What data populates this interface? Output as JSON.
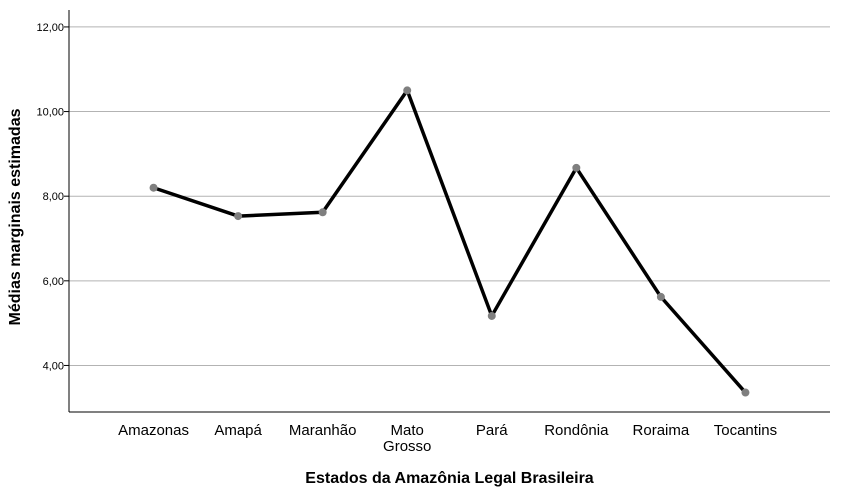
{
  "chart_data": {
    "type": "line",
    "categories": [
      "Amazonas",
      "Amapá",
      "Maranhão",
      "Mato Grosso",
      "Pará",
      "Rondônia",
      "Roraima",
      "Tocantins"
    ],
    "category_label_lines": [
      [
        "Amazonas"
      ],
      [
        "Amapá"
      ],
      [
        "Maranhão"
      ],
      [
        "Mato",
        "Grosso"
      ],
      [
        "Pará"
      ],
      [
        "Rondônia"
      ],
      [
        "Roraima"
      ],
      [
        "Tocantins"
      ]
    ],
    "values": [
      8.2,
      7.53,
      7.62,
      10.5,
      5.17,
      8.67,
      5.62,
      3.36
    ],
    "xlabel": "Estados da Amazônia Legal Brasileira",
    "ylabel": "Médias marginais estimadas",
    "ylim": [
      2.9,
      12.4
    ],
    "yticks": [
      4,
      6,
      8,
      10,
      12
    ],
    "ytick_labels": [
      "4,00",
      "6,00",
      "8,00",
      "10,00",
      "12,00"
    ],
    "grid": true,
    "colors": {
      "line": "#000000",
      "marker": "#7f7f7f",
      "grid": "#b3b3b3",
      "axis": "#000000"
    }
  }
}
